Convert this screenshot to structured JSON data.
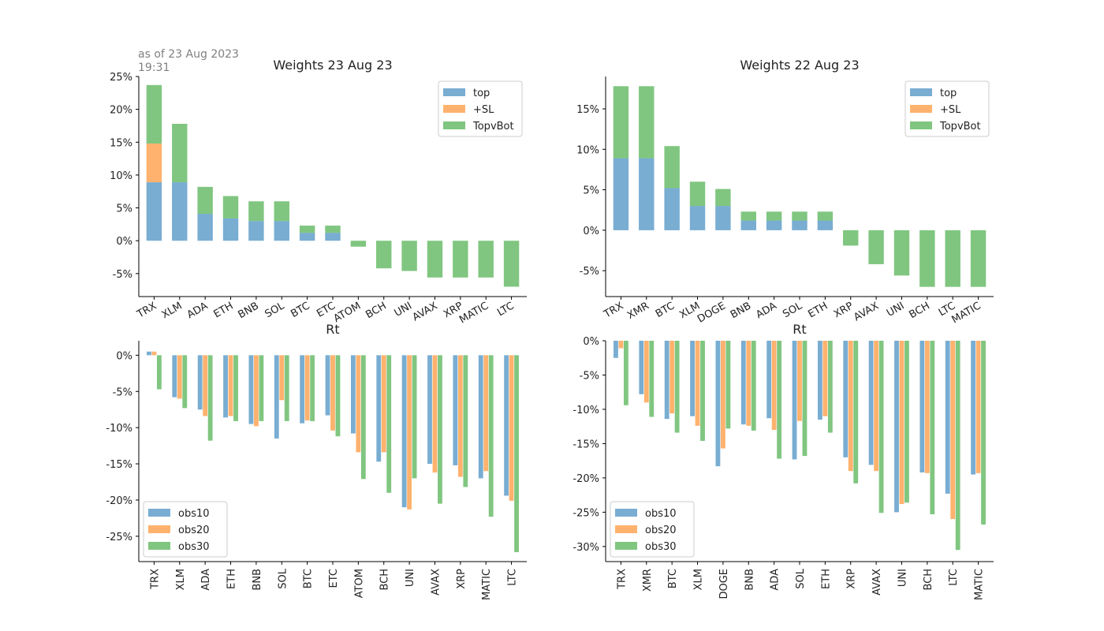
{
  "note": {
    "line1": "as of 23 Aug 2023",
    "line2": "19:31"
  },
  "colors": {
    "top": "#1f77b4",
    "sl": "#ff7f0e",
    "tvb": "#2ca02c",
    "obs10": "#1f77b4",
    "obs20": "#ff7f0e",
    "obs30": "#2ca02c"
  },
  "chart_data": [
    {
      "type": "bar",
      "stacked": true,
      "title": "Weights 23 Aug 23",
      "categories": [
        "TRX",
        "XLM",
        "ADA",
        "ETH",
        "BNB",
        "SOL",
        "BTC",
        "ETC",
        "ATOM",
        "BCH",
        "UNI",
        "AVAX",
        "XRP",
        "MATIC",
        "LTC"
      ],
      "series": [
        {
          "name": "top",
          "values": [
            0.089,
            0.089,
            0.041,
            0.034,
            0.03,
            0.03,
            0.012,
            0.012,
            0,
            0,
            0,
            0,
            0,
            0,
            0
          ]
        },
        {
          "name": "+SL",
          "values": [
            0.059,
            0,
            0,
            0,
            0,
            0,
            0,
            0,
            0,
            0,
            0,
            0,
            0,
            0,
            0
          ]
        },
        {
          "name": "TopvBot",
          "values": [
            0.089,
            0.089,
            0.041,
            0.034,
            0.03,
            0.03,
            0.011,
            0.011,
            -0.009,
            -0.042,
            -0.046,
            -0.056,
            -0.056,
            -0.056,
            -0.07
          ]
        }
      ],
      "ylim": [
        -0.085,
        0.25
      ],
      "yticks": [
        -0.05,
        0,
        0.05,
        0.1,
        0.15,
        0.2,
        0.25
      ],
      "ytick_labels": [
        "-5%",
        "0%",
        "5%",
        "10%",
        "15%",
        "20%",
        "25%"
      ],
      "legend": "top-right",
      "xtick_rotation": "slanted"
    },
    {
      "type": "bar",
      "stacked": true,
      "title": "Weights 22 Aug 23",
      "categories": [
        "TRX",
        "XMR",
        "BTC",
        "XLM",
        "DOGE",
        "BNB",
        "ADA",
        "SOL",
        "ETH",
        "XRP",
        "AVAX",
        "UNI",
        "BCH",
        "LTC",
        "MATIC"
      ],
      "series": [
        {
          "name": "top",
          "values": [
            0.089,
            0.089,
            0.052,
            0.03,
            0.03,
            0.012,
            0.012,
            0.012,
            0.012,
            0,
            0,
            0,
            0,
            0,
            0
          ]
        },
        {
          "name": "+SL",
          "values": [
            0,
            0,
            0,
            0,
            0,
            0,
            0,
            0,
            0,
            0,
            0,
            0,
            0,
            0,
            0
          ]
        },
        {
          "name": "TopvBot",
          "values": [
            0.089,
            0.089,
            0.052,
            0.03,
            0.021,
            0.011,
            0.011,
            0.011,
            0.011,
            -0.019,
            -0.042,
            -0.056,
            -0.07,
            -0.07,
            -0.07
          ]
        }
      ],
      "ylim": [
        -0.082,
        0.19
      ],
      "yticks": [
        -0.05,
        0,
        0.05,
        0.1,
        0.15
      ],
      "ytick_labels": [
        "-5%",
        "0%",
        "5%",
        "10%",
        "15%"
      ],
      "legend": "top-right",
      "xtick_rotation": "slanted"
    },
    {
      "type": "bar",
      "grouped": true,
      "title": "Rt",
      "categories": [
        "TRX",
        "XLM",
        "ADA",
        "ETH",
        "BNB",
        "SOL",
        "BTC",
        "ETC",
        "ATOM",
        "BCH",
        "UNI",
        "AVAX",
        "XRP",
        "MATIC",
        "LTC"
      ],
      "series": [
        {
          "name": "obs10",
          "values": [
            0.005,
            -0.058,
            -0.075,
            -0.086,
            -0.095,
            -0.115,
            -0.094,
            -0.083,
            -0.108,
            -0.147,
            -0.21,
            -0.15,
            -0.152,
            -0.17,
            -0.194
          ]
        },
        {
          "name": "obs20",
          "values": [
            0.005,
            -0.06,
            -0.084,
            -0.084,
            -0.098,
            -0.062,
            -0.09,
            -0.104,
            -0.134,
            -0.134,
            -0.213,
            -0.162,
            -0.168,
            -0.16,
            -0.201
          ]
        },
        {
          "name": "obs30",
          "values": [
            -0.047,
            -0.073,
            -0.118,
            -0.091,
            -0.091,
            -0.091,
            -0.091,
            -0.112,
            -0.171,
            -0.19,
            -0.17,
            -0.205,
            -0.182,
            -0.223,
            -0.272
          ]
        }
      ],
      "ylim": [
        -0.285,
        0.02
      ],
      "yticks": [
        -0.25,
        -0.2,
        -0.15,
        -0.1,
        -0.05,
        0
      ],
      "ytick_labels": [
        "-25%",
        "-20%",
        "-15%",
        "-10%",
        "-5%",
        "0%"
      ],
      "legend": "bottom-left",
      "xtick_rotation": "vertical"
    },
    {
      "type": "bar",
      "grouped": true,
      "title": "Rt",
      "categories": [
        "TRX",
        "XMR",
        "BTC",
        "XLM",
        "DOGE",
        "BNB",
        "ADA",
        "SOL",
        "ETH",
        "XRP",
        "AVAX",
        "UNI",
        "BCH",
        "LTC",
        "MATIC"
      ],
      "series": [
        {
          "name": "obs10",
          "values": [
            -0.025,
            -0.078,
            -0.114,
            -0.11,
            -0.183,
            -0.122,
            -0.113,
            -0.173,
            -0.115,
            -0.17,
            -0.181,
            -0.25,
            -0.192,
            -0.223,
            -0.195
          ]
        },
        {
          "name": "obs20",
          "values": [
            -0.011,
            -0.09,
            -0.106,
            -0.124,
            -0.157,
            -0.124,
            -0.13,
            -0.117,
            -0.11,
            -0.19,
            -0.19,
            -0.238,
            -0.193,
            -0.26,
            -0.193
          ]
        },
        {
          "name": "obs30",
          "values": [
            -0.094,
            -0.111,
            -0.134,
            -0.146,
            -0.128,
            -0.131,
            -0.172,
            -0.168,
            -0.134,
            -0.208,
            -0.251,
            -0.236,
            -0.253,
            -0.305,
            -0.268
          ]
        }
      ],
      "ylim": [
        -0.322,
        0.0
      ],
      "yticks": [
        -0.3,
        -0.25,
        -0.2,
        -0.15,
        -0.1,
        -0.05,
        0
      ],
      "ytick_labels": [
        "-30%",
        "-25%",
        "-20%",
        "-15%",
        "-10%",
        "-5%",
        "0%"
      ],
      "legend": "bottom-left",
      "xtick_rotation": "vertical"
    }
  ]
}
